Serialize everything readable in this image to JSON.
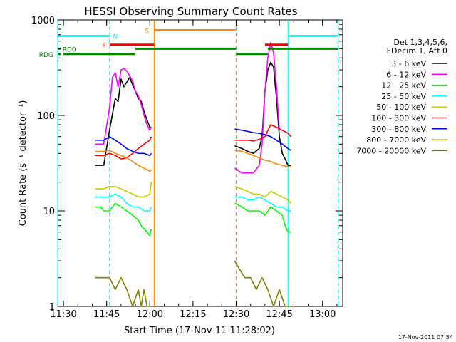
{
  "chart_data": {
    "type": "line",
    "title": "HESSI Observing Summary Count Rates",
    "xlabel": "Start Time (17-Nov-11 11:28:02)",
    "ylabel": "Count Rate (s⁻¹ detector⁻¹)",
    "x_unit": "minutes after 11:28:02 start time",
    "xlim": [
      0,
      99
    ],
    "ylim": [
      1,
      1000
    ],
    "yscale": "log",
    "x_ticks": [
      {
        "value": 2,
        "label": "11:30"
      },
      {
        "value": 17,
        "label": "11:45"
      },
      {
        "value": 32,
        "label": "12:00"
      },
      {
        "value": 47,
        "label": "12:15"
      },
      {
        "value": 62,
        "label": "12:30"
      },
      {
        "value": 77,
        "label": "12:45"
      },
      {
        "value": 92,
        "label": "13:00"
      }
    ],
    "y_ticks": [
      {
        "value": 1,
        "label": "1"
      },
      {
        "value": 10,
        "label": "10"
      },
      {
        "value": 100,
        "label": "100"
      },
      {
        "value": 1000,
        "label": "1000"
      }
    ],
    "grid": false,
    "legend_position": "right",
    "legend_header": [
      "Det 1,3,4,5,6,",
      "FDecim 1, Att 0"
    ],
    "series": [
      {
        "name": "3 - 6 keV",
        "color": "#000000",
        "segments": [
          {
            "x": [
              13,
              16,
              18,
              20,
              21,
              22,
              23,
              25,
              26,
              27,
              28,
              29,
              30,
              31,
              32,
              32.5
            ],
            "y": [
              30,
              30,
              70,
              150,
              140,
              240,
              200,
              250,
              210,
              180,
              150,
              140,
              110,
              90,
              75,
              75
            ]
          },
          {
            "x": [
              61.5,
              64,
              66,
              68,
              70,
              71,
              72,
              73,
              74,
              75,
              76,
              77,
              78,
              79,
              80,
              81
            ],
            "y": [
              48,
              45,
              42,
              40,
              45,
              60,
              180,
              300,
              360,
              320,
              150,
              60,
              40,
              35,
              30,
              30
            ]
          }
        ]
      },
      {
        "name": "6 - 12 keV",
        "color": "#ff00ff",
        "segments": [
          {
            "x": [
              13,
              16,
              18,
              19,
              20,
              21,
              22,
              23,
              24,
              25,
              26,
              27,
              28,
              29,
              30,
              31,
              32,
              32.5
            ],
            "y": [
              50,
              50,
              120,
              250,
              280,
              200,
              300,
              310,
              290,
              260,
              230,
              180,
              160,
              130,
              100,
              80,
              70,
              75
            ]
          },
          {
            "x": [
              61.5,
              64,
              66,
              68,
              70,
              71,
              72,
              73,
              74,
              75,
              76,
              77
            ],
            "y": [
              28,
              25,
              25,
              25,
              30,
              50,
              180,
              400,
              580,
              450,
              200,
              70
            ]
          }
        ]
      },
      {
        "name": "12 - 25 keV",
        "color": "#00ff00",
        "segments": [
          {
            "x": [
              13,
              15,
              16,
              18,
              20,
              22,
              24,
              26,
              28,
              29,
              30,
              31,
              32,
              32.5
            ],
            "y": [
              11,
              11,
              10,
              10,
              12,
              11,
              10,
              9,
              8,
              7,
              6.5,
              6,
              5.5,
              6.5
            ]
          },
          {
            "x": [
              61.5,
              64,
              66,
              68,
              70,
              72,
              74,
              76,
              78,
              79,
              80,
              81
            ],
            "y": [
              12,
              11,
              10,
              10,
              10,
              9,
              11,
              10,
              9,
              7,
              6,
              6
            ]
          }
        ]
      },
      {
        "name": "25 - 50 keV",
        "color": "#00ffff",
        "segments": [
          {
            "x": [
              13,
              16,
              18,
              20,
              22,
              24,
              26,
              28,
              30,
              31,
              32,
              32.5
            ],
            "y": [
              14,
              14,
              14,
              15,
              14,
              12,
              11,
              11,
              10,
              10,
              10,
              11
            ]
          },
          {
            "x": [
              61.5,
              64,
              66,
              68,
              70,
              72,
              74,
              76,
              78,
              80,
              81
            ],
            "y": [
              14,
              14,
              13,
              13,
              14,
              13,
              12,
              11,
              11,
              10,
              10
            ]
          }
        ]
      },
      {
        "name": "50 - 100 keV",
        "color": "#cccc00",
        "segments": [
          {
            "x": [
              13,
              16,
              18,
              20,
              22,
              24,
              26,
              28,
              30,
              32,
              32.5
            ],
            "y": [
              17,
              17,
              18,
              18,
              17,
              16,
              15,
              14,
              14,
              15,
              20
            ]
          },
          {
            "x": [
              61.5,
              64,
              66,
              68,
              70,
              72,
              74,
              76,
              78,
              80,
              81
            ],
            "y": [
              18,
              17,
              16,
              15,
              15,
              14,
              16,
              15,
              14,
              13,
              12
            ]
          }
        ]
      },
      {
        "name": "100 - 300 keV",
        "color": "#ff0000",
        "segments": [
          {
            "x": [
              13,
              16,
              18,
              20,
              22,
              24,
              26,
              28,
              30,
              32,
              32.5
            ],
            "y": [
              38,
              38,
              40,
              38,
              35,
              36,
              40,
              45,
              50,
              55,
              60
            ]
          },
          {
            "x": [
              61.5,
              64,
              66,
              68,
              70,
              72,
              74,
              76,
              78,
              80,
              81
            ],
            "y": [
              55,
              55,
              55,
              54,
              56,
              60,
              80,
              75,
              70,
              65,
              60
            ]
          }
        ]
      },
      {
        "name": "300 - 800 keV",
        "color": "#0000ff",
        "segments": [
          {
            "x": [
              13,
              16,
              18,
              20,
              22,
              24,
              26,
              28,
              30,
              32,
              32.5
            ],
            "y": [
              55,
              55,
              60,
              55,
              50,
              45,
              42,
              40,
              40,
              38,
              40
            ]
          },
          {
            "x": [
              61.5,
              64,
              66,
              68,
              70,
              72,
              74,
              76,
              78,
              80,
              81
            ],
            "y": [
              72,
              70,
              68,
              66,
              65,
              63,
              60,
              55,
              50,
              45,
              43
            ]
          }
        ]
      },
      {
        "name": "800 - 7000 keV",
        "color": "#ff8800",
        "segments": [
          {
            "x": [
              13,
              16,
              18,
              20,
              22,
              24,
              26,
              28,
              30,
              32,
              32.5
            ],
            "y": [
              42,
              42,
              43,
              40,
              38,
              36,
              33,
              30,
              28,
              26,
              27
            ]
          },
          {
            "x": [
              61.5,
              64,
              66,
              68,
              70,
              72,
              74,
              76,
              78,
              80,
              81
            ],
            "y": [
              43,
              42,
              40,
              38,
              36,
              34,
              33,
              31,
              30,
              29,
              29
            ]
          }
        ]
      },
      {
        "name": "7000 - 20000 keV",
        "color": "#808000",
        "segments": [
          {
            "x": [
              13,
              16,
              18,
              20,
              22,
              24,
              26,
              28,
              29,
              30,
              31,
              32
            ],
            "y": [
              2,
              2,
              2,
              1.5,
              2,
              1.5,
              1,
              1.5,
              1,
              1.5,
              1,
              1
            ]
          },
          {
            "x": [
              61.5,
              63,
              65,
              67,
              69,
              71,
              73,
              75,
              77,
              79,
              81
            ],
            "y": [
              3,
              2.5,
              2,
              2,
              1.5,
              2,
              1.5,
              1,
              1.5,
              1,
              1
            ]
          }
        ]
      }
    ],
    "vertical_lines": [
      {
        "x": 0,
        "color": "#00ffff",
        "style": "solid"
      },
      {
        "x": 18,
        "color": "#00ffff",
        "style": "dashed"
      },
      {
        "x": 33.5,
        "color": "#ff8800",
        "style": "solid"
      },
      {
        "x": 62,
        "color": "#ff8800",
        "style": "dashed"
      },
      {
        "x": 80,
        "color": "#00ffff",
        "style": "solid"
      },
      {
        "x": 97.5,
        "color": "#00ffff",
        "style": "dashed"
      }
    ],
    "state_bars": [
      {
        "label": "N",
        "color": "#00ffff",
        "y": 680,
        "ranges": [
          [
            0,
            18
          ],
          [
            80,
            97.5
          ]
        ],
        "label_x": 20
      },
      {
        "label": "S",
        "color": "#ff8800",
        "y": 780,
        "ranges": [
          [
            33.5,
            62
          ]
        ],
        "label_x": 31
      },
      {
        "label": "F",
        "color": "#ff0000",
        "y": 550,
        "ranges": [
          [
            18,
            33.5
          ],
          [
            72,
            80
          ]
        ],
        "label_x": 16
      },
      {
        "label": "RD0",
        "color": "#008800",
        "y": 500,
        "ranges": [
          [
            0,
            1
          ]
        ],
        "label_x": 4
      },
      {
        "label": "RDG",
        "color": "#008800",
        "y": 440,
        "ranges": [
          [
            0,
            1
          ]
        ],
        "label_x": -4
      }
    ],
    "green_bars": [
      {
        "color": "#008800",
        "y": 500,
        "ranges": [
          [
            27,
            62
          ],
          [
            73,
            97.5
          ]
        ]
      },
      {
        "color": "#008800",
        "y": 440,
        "ranges": [
          [
            2,
            27
          ],
          [
            62,
            73
          ]
        ]
      }
    ]
  },
  "footer_timestamp": "17-Nov-2011 07:54"
}
